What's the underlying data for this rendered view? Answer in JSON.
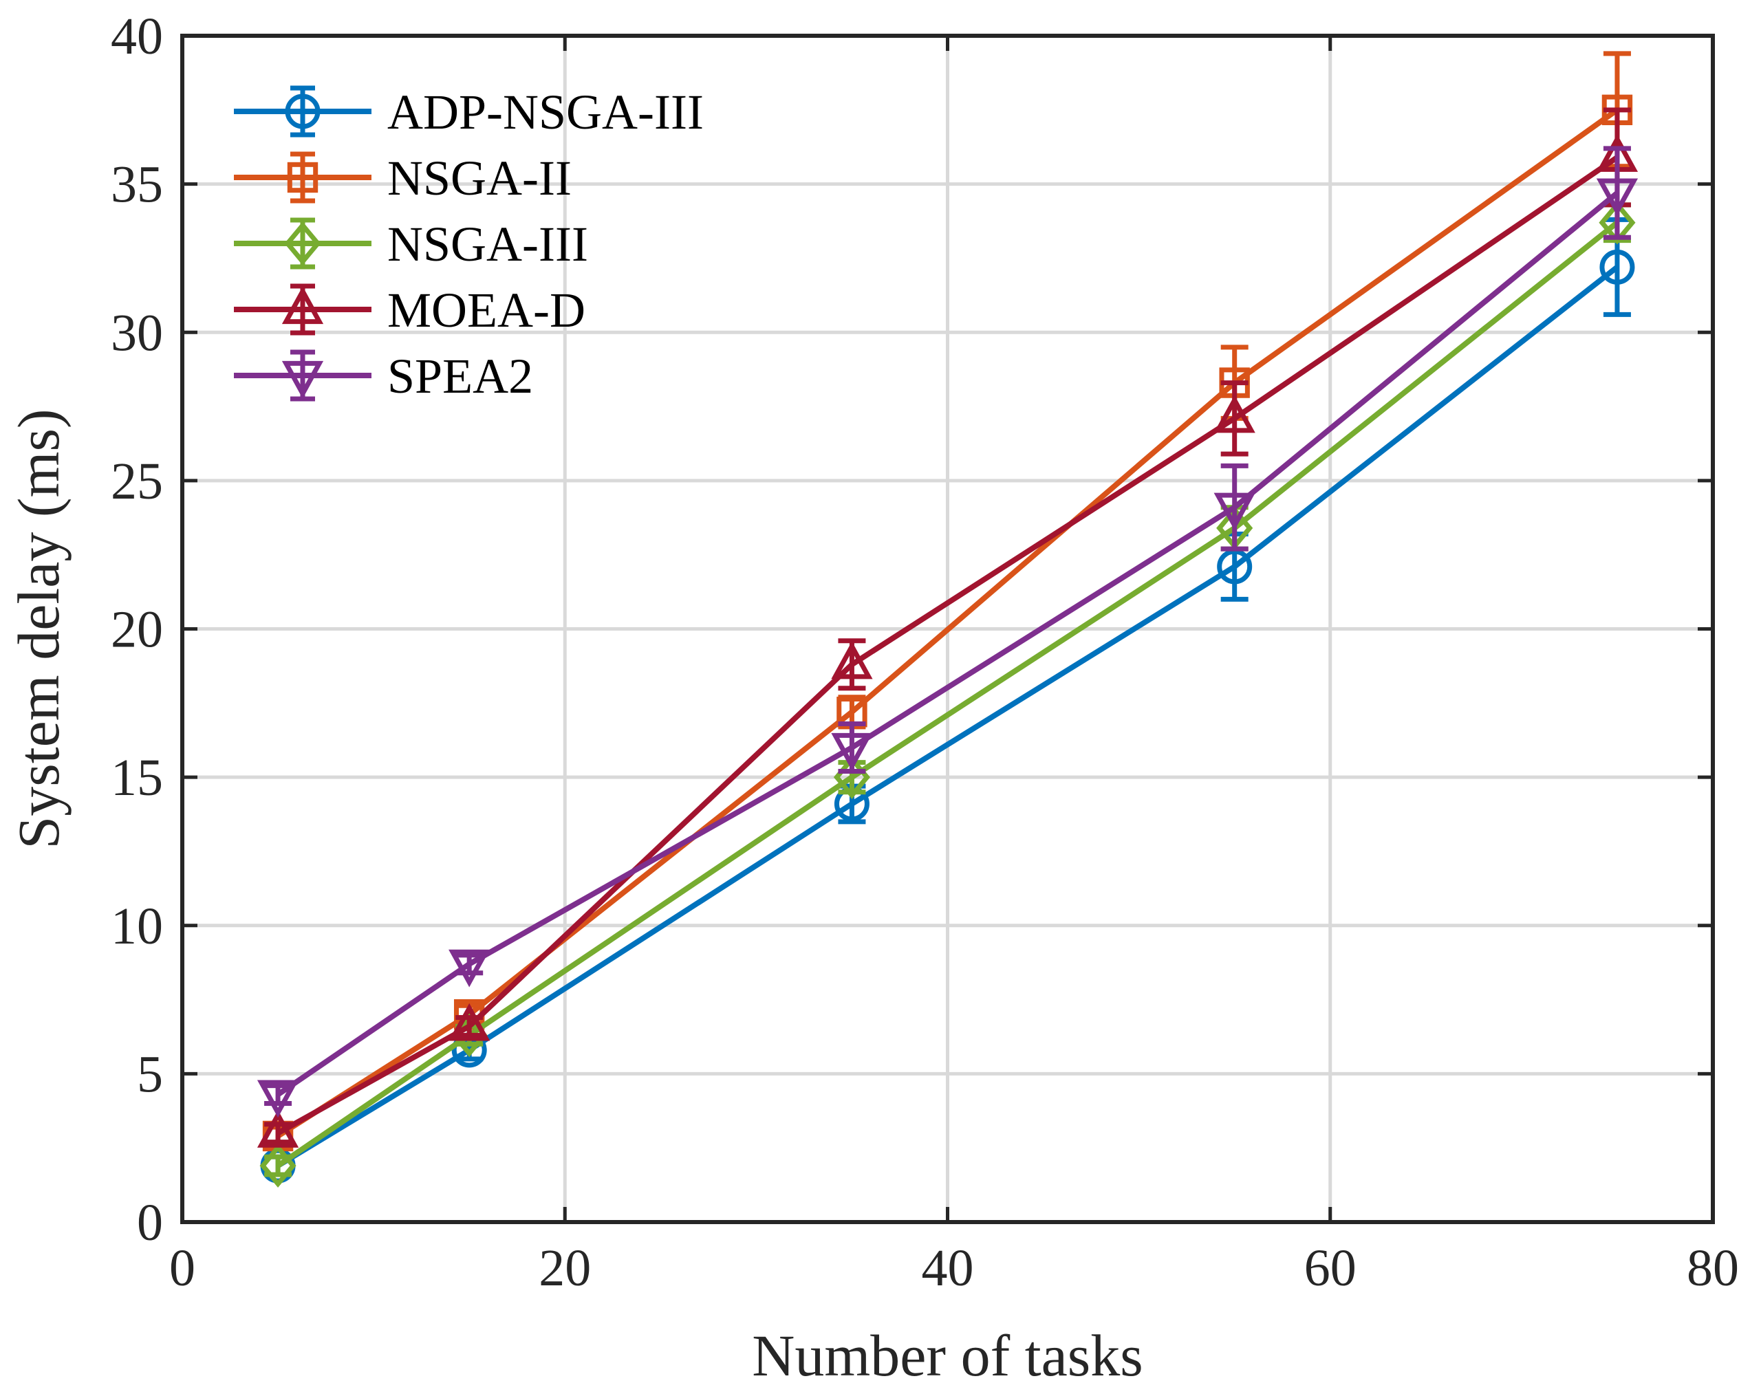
{
  "chart_data": {
    "type": "line",
    "title": "",
    "xlabel": "Number of tasks",
    "ylabel": "System delay (ms)",
    "xlim": [
      0,
      80
    ],
    "ylim": [
      0,
      40
    ],
    "xticks": [
      0,
      20,
      40,
      60,
      80
    ],
    "yticks": [
      0,
      5,
      10,
      15,
      20,
      25,
      30,
      35,
      40
    ],
    "grid": true,
    "legend_position": "top-left",
    "x": [
      5,
      15,
      35,
      55,
      75
    ],
    "series": [
      {
        "name": "ADP-NSGA-III",
        "color": "#0072BD",
        "marker": "circle",
        "values": [
          1.9,
          5.8,
          14.1,
          22.1,
          32.2
        ],
        "errors": [
          0.3,
          0.3,
          0.6,
          1.1,
          1.6
        ]
      },
      {
        "name": "NSGA-II",
        "color": "#D95319",
        "marker": "square",
        "values": [
          2.9,
          7.0,
          17.2,
          28.3,
          37.5
        ],
        "errors": [
          0.3,
          0.3,
          0.5,
          1.2,
          1.9
        ]
      },
      {
        "name": "NSGA-III",
        "color": "#77AC30",
        "marker": "diamond",
        "values": [
          1.9,
          6.3,
          15.0,
          23.4,
          33.7
        ],
        "errors": [
          0.3,
          0.3,
          0.5,
          0.7,
          0.6
        ]
      },
      {
        "name": "MOEA-D",
        "color": "#A2142F",
        "marker": "triangle-up",
        "values": [
          3.0,
          6.6,
          18.8,
          27.1,
          35.9
        ],
        "errors": [
          0.3,
          0.3,
          0.8,
          1.2,
          1.6
        ]
      },
      {
        "name": "SPEA2",
        "color": "#7E2F8E",
        "marker": "triangle-down",
        "values": [
          4.3,
          8.7,
          16.0,
          24.1,
          34.7
        ],
        "errors": [
          0.3,
          0.3,
          0.8,
          1.4,
          1.5
        ]
      }
    ]
  }
}
